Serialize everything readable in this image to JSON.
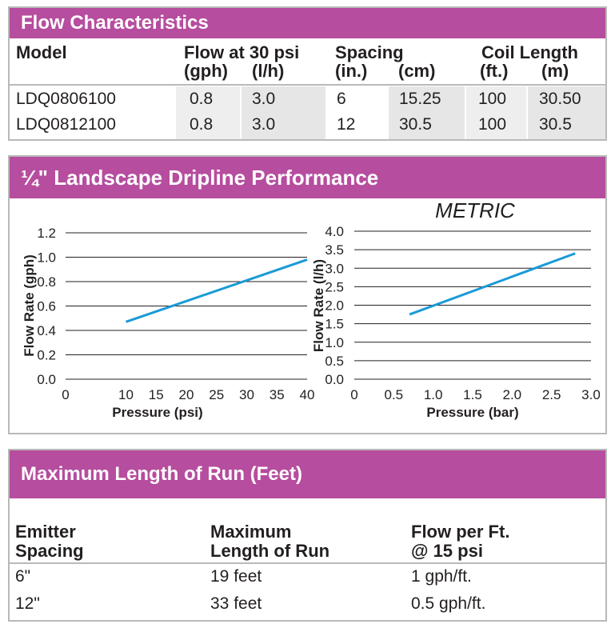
{
  "flow": {
    "title": "Flow Characteristics",
    "headers": {
      "model": "Model",
      "flow_top": "Flow at 30 psi",
      "flow_gph": "(gph)",
      "flow_lh": "(l/h)",
      "spacing_top": "Spacing",
      "spacing_in": "(in.)",
      "spacing_cm": "(cm)",
      "coil_top": "Coil Length",
      "coil_ft": "(ft.)",
      "coil_m": "(m)"
    },
    "rows": [
      {
        "model": "LDQ0806100",
        "gph": "0.8",
        "lh": "3.0",
        "in": "6",
        "cm": "15.25",
        "ft": "100",
        "m": "30.50"
      },
      {
        "model": "LDQ0812100",
        "gph": "0.8",
        "lh": "3.0",
        "in": "12",
        "cm": "30.5",
        "ft": "100",
        "m": "30.5"
      }
    ]
  },
  "performance": {
    "title": "¼\" Landscape Dripline Performance"
  },
  "chart_data": [
    {
      "type": "line",
      "title": "",
      "xlabel": "Pressure (psi)",
      "ylabel": "Flow Rate (gph)",
      "xlim": [
        0,
        40
      ],
      "ylim": [
        0,
        1.2
      ],
      "xticks": [
        "0",
        "10",
        "15",
        "20",
        "25",
        "30",
        "35",
        "40"
      ],
      "yticks": [
        "0.0",
        "0.2",
        "0.4",
        "0.6",
        "0.8",
        "1.0",
        "1.2"
      ],
      "grid": "horizontal",
      "series": [
        {
          "color": "#1a9ad6",
          "x": [
            10,
            40
          ],
          "y": [
            0.47,
            0.98
          ]
        }
      ]
    },
    {
      "type": "line",
      "title": "METRIC",
      "xlabel": "Pressure (bar)",
      "ylabel": "Flow Rate (l/h)",
      "xlim": [
        0,
        3.0
      ],
      "ylim": [
        0,
        4.0
      ],
      "xticks": [
        "0",
        "0.5",
        "1.0",
        "1.5",
        "2.0",
        "2.5",
        "3.0"
      ],
      "yticks": [
        "0.0",
        "0.5",
        "1.0",
        "1.5",
        "2.0",
        "2.5",
        "3.0",
        "3.5",
        "4.0"
      ],
      "grid": "horizontal",
      "series": [
        {
          "color": "#1a9ad6",
          "x": [
            0.7,
            2.8
          ],
          "y": [
            1.75,
            3.4
          ]
        }
      ]
    }
  ],
  "runs": {
    "title": "Maximum Length of Run (Feet)",
    "headers": {
      "spacing_1": "Emitter",
      "spacing_2": "Spacing",
      "length_1": "Maximum",
      "length_2": "Length of Run",
      "flow_1": "Flow per Ft.",
      "flow_2": "@ 15 psi"
    },
    "rows": [
      {
        "spacing": "6\"",
        "length": "19 feet",
        "flow": "1 gph/ft."
      },
      {
        "spacing": "12\"",
        "length": "33 feet",
        "flow": "0.5 gph/ft."
      }
    ]
  }
}
